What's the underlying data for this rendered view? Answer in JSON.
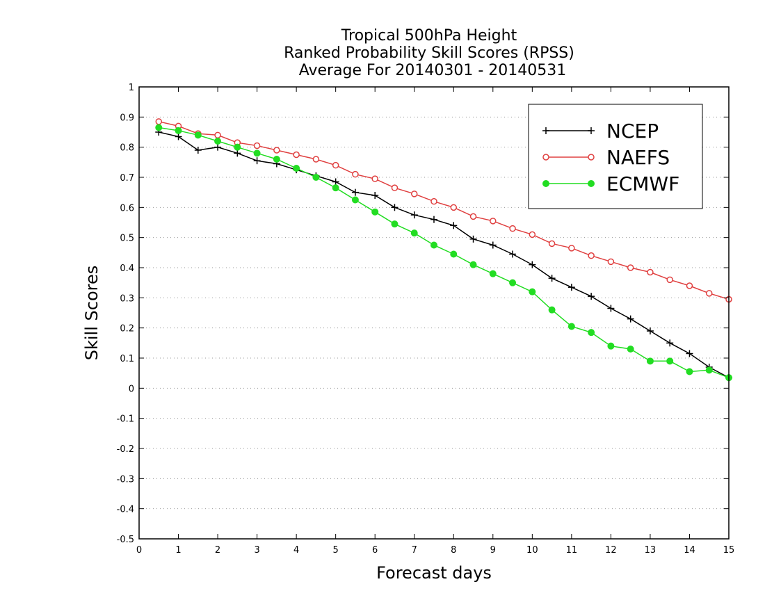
{
  "chart_data": {
    "type": "line",
    "title": [
      "Tropical 500hPa Height",
      "Ranked Probability Skill Scores (RPSS)",
      "Average For 20140301 - 20140531"
    ],
    "xlabel": "Forecast days",
    "ylabel": "Skill Scores",
    "xlim": [
      0,
      15
    ],
    "ylim": [
      -0.5,
      1
    ],
    "xticks": [
      "0",
      "1",
      "2",
      "3",
      "4",
      "5",
      "6",
      "7",
      "8",
      "9",
      "10",
      "11",
      "12",
      "13",
      "14",
      "15"
    ],
    "yticks": [
      "-0.5",
      "-0.4",
      "-0.3",
      "-0.2",
      "-0.1",
      "0",
      "0.1",
      "0.2",
      "0.3",
      "0.4",
      "0.5",
      "0.6",
      "0.7",
      "0.8",
      "0.9",
      "1"
    ],
    "grid": true,
    "legend_position": "top-right",
    "x": [
      0.5,
      1,
      1.5,
      2,
      2.5,
      3,
      3.5,
      4,
      4.5,
      5,
      5.5,
      6,
      6.5,
      7,
      7.5,
      8,
      8.5,
      9,
      9.5,
      10,
      10.5,
      11,
      11.5,
      12,
      12.5,
      13,
      13.5,
      14,
      14.5,
      15
    ],
    "series": [
      {
        "name": "NCEP",
        "color": "#000000",
        "marker": "plus",
        "values": [
          0.85,
          0.835,
          0.79,
          0.8,
          0.78,
          0.755,
          0.745,
          0.725,
          0.705,
          0.685,
          0.65,
          0.64,
          0.6,
          0.575,
          0.56,
          0.54,
          0.495,
          0.475,
          0.445,
          0.41,
          0.365,
          0.335,
          0.305,
          0.265,
          0.23,
          0.19,
          0.15,
          0.115,
          0.07,
          0.035
        ]
      },
      {
        "name": "NAEFS",
        "color": "#e04040",
        "marker": "open-circle",
        "values": [
          0.885,
          0.87,
          0.845,
          0.84,
          0.815,
          0.805,
          0.79,
          0.775,
          0.76,
          0.74,
          0.71,
          0.695,
          0.665,
          0.645,
          0.62,
          0.6,
          0.57,
          0.555,
          0.53,
          0.51,
          0.48,
          0.465,
          0.44,
          0.42,
          0.4,
          0.385,
          0.36,
          0.34,
          0.315,
          0.295
        ]
      },
      {
        "name": "ECMWF",
        "color": "#22dd22",
        "marker": "filled-circle",
        "values": [
          0.865,
          0.855,
          0.84,
          0.82,
          0.8,
          0.78,
          0.76,
          0.73,
          0.7,
          0.665,
          0.625,
          0.585,
          0.545,
          0.515,
          0.475,
          0.445,
          0.41,
          0.38,
          0.35,
          0.32,
          0.26,
          0.205,
          0.185,
          0.14,
          0.13,
          0.09,
          0.09,
          0.055,
          0.06,
          0.035
        ]
      }
    ]
  }
}
